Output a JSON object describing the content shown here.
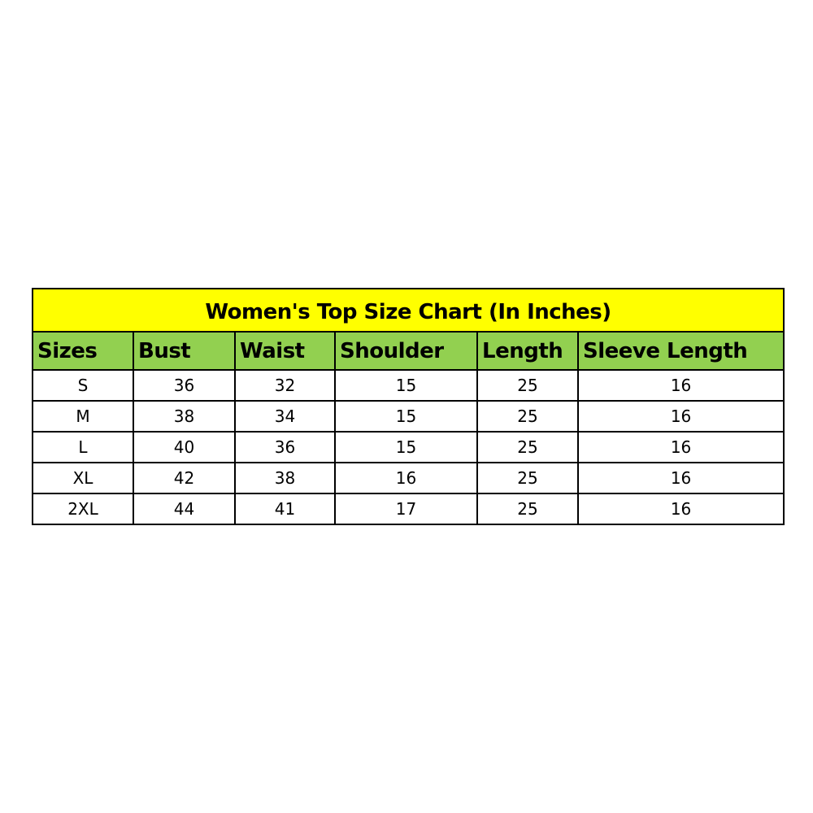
{
  "colors": {
    "title_bg": "#FFFF00",
    "header_bg": "#92D050",
    "border": "#000000"
  },
  "chart_data": {
    "type": "table",
    "title": "Women's Top Size Chart (In Inches)",
    "columns": [
      "Sizes",
      "Bust",
      "Waist",
      "Shoulder",
      "Length",
      "Sleeve Length"
    ],
    "rows": [
      [
        "S",
        "36",
        "32",
        "15",
        "25",
        "16"
      ],
      [
        "M",
        "38",
        "34",
        "15",
        "25",
        "16"
      ],
      [
        "L",
        "40",
        "36",
        "15",
        "25",
        "16"
      ],
      [
        "XL",
        "42",
        "38",
        "16",
        "25",
        "16"
      ],
      [
        "2XL",
        "44",
        "41",
        "17",
        "25",
        "16"
      ]
    ]
  }
}
